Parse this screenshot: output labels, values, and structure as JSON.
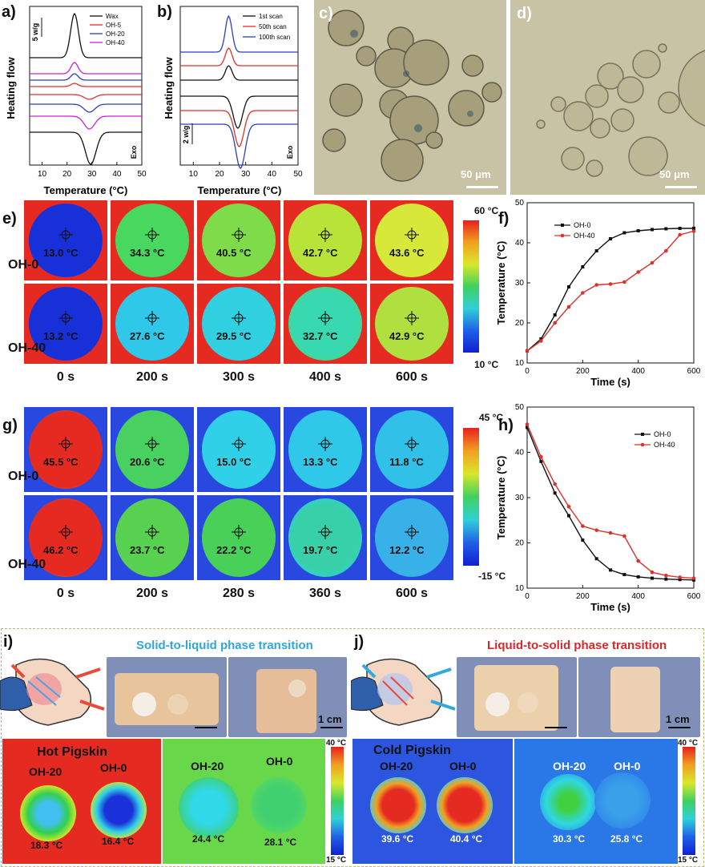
{
  "panels": {
    "a": {
      "label": "a)",
      "ylabel": "Heating flow",
      "xlabel": "Temperature (°C)",
      "scale": "5 w/g",
      "exo": "Exo",
      "legend": [
        "Wax",
        "OH-5",
        "OH-20",
        "OH-40"
      ]
    },
    "b": {
      "label": "b)",
      "ylabel": "Heating flow",
      "xlabel": "Temperature (°C)",
      "scale": "2 w/g",
      "exo": "Exo",
      "legend": [
        "1st scan",
        "50th scan",
        "100th scan"
      ]
    },
    "c": {
      "label": "c)",
      "scalebar": "50 μm"
    },
    "d": {
      "label": "d)",
      "scalebar": "50 μm"
    },
    "e": {
      "label": "e)",
      "rows": [
        {
          "name": "OH-0",
          "temps": [
            "13.0 °C",
            "34.3 °C",
            "40.5 °C",
            "42.7 °C",
            "43.6 °C"
          ]
        },
        {
          "name": "OH-40",
          "temps": [
            "13.2 °C",
            "27.6 °C",
            "29.5 °C",
            "32.7 °C",
            "42.9 °C"
          ]
        }
      ],
      "times": [
        "0 s",
        "200 s",
        "300 s",
        "400 s",
        "600 s"
      ],
      "cbar_top": "60 °C",
      "cbar_bottom": "10 °C"
    },
    "f": {
      "label": "f)",
      "ylabel": "Temperature (°C)",
      "xlabel": "Time (s)",
      "legend": [
        "OH-0",
        "OH-40"
      ]
    },
    "g": {
      "label": "g)",
      "rows": [
        {
          "name": "OH-0",
          "temps": [
            "45.5 °C",
            "20.6 °C",
            "15.0 °C",
            "13.3 °C",
            "11.8 °C"
          ]
        },
        {
          "name": "OH-40",
          "temps": [
            "46.2 °C",
            "23.7 °C",
            "22.2 °C",
            "19.7 °C",
            "12.2 °C"
          ]
        }
      ],
      "times": [
        "0 s",
        "200 s",
        "280 s",
        "360 s",
        "600 s"
      ],
      "cbar_top": "45 °C",
      "cbar_bottom": "-15 °C"
    },
    "h": {
      "label": "h)",
      "ylabel": "Temperature (°C)",
      "xlabel": "Time (s)",
      "legend": [
        "OH-0",
        "OH-40"
      ]
    },
    "i": {
      "label": "i)",
      "phase": "Solid-to-liquid phase transition",
      "scalebar": "1 cm",
      "pig_title": "Hot Pigskin",
      "left": {
        "a": "OH-20",
        "b": "OH-0",
        "ta": "18.3 °C",
        "tb": "16.4 °C"
      },
      "right": {
        "a": "OH-20",
        "b": "OH-0",
        "ta": "24.4 °C",
        "tb": "28.1 °C"
      },
      "cbar_top": "40 °C",
      "cbar_bottom": "15 °C"
    },
    "j": {
      "label": "j)",
      "phase": "Liquid-to-solid phase transition",
      "scalebar": "1 cm",
      "pig_title": "Cold Pigskin",
      "left": {
        "a": "OH-20",
        "b": "OH-0",
        "ta": "39.6 °C",
        "tb": "40.4 °C"
      },
      "right": {
        "a": "OH-20",
        "b": "OH-0",
        "ta": "30.3 °C",
        "tb": "25.8 °C"
      },
      "cbar_top": "40 °C",
      "cbar_bottom": "15 °C"
    }
  },
  "chart_data": [
    {
      "type": "line",
      "panel": "a",
      "xlabel": "Temperature (°C)",
      "ylabel": "Heating flow",
      "xlim": [
        5,
        50
      ],
      "x_ticks": [
        10,
        20,
        30,
        40,
        50
      ],
      "series": [
        {
          "name": "Wax",
          "color": "#111111"
        },
        {
          "name": "OH-5",
          "color": "#e0302a"
        },
        {
          "name": "OH-20",
          "color": "#2b3fbf"
        },
        {
          "name": "OH-40",
          "color": "#d020d0"
        }
      ]
    },
    {
      "type": "line",
      "panel": "b",
      "xlabel": "Temperature (°C)",
      "ylabel": "Heating flow",
      "xlim": [
        5,
        50
      ],
      "x_ticks": [
        10,
        20,
        30,
        40,
        50
      ],
      "series": [
        {
          "name": "1st scan",
          "color": "#111111"
        },
        {
          "name": "50th scan",
          "color": "#e0302a"
        },
        {
          "name": "100th scan",
          "color": "#2b3fbf"
        }
      ]
    },
    {
      "type": "line",
      "panel": "f",
      "xlabel": "Time (s)",
      "ylabel": "Temperature (°C)",
      "xlim": [
        0,
        600
      ],
      "ylim": [
        10,
        50
      ],
      "x_ticks": [
        0,
        200,
        400,
        600
      ],
      "y_ticks": [
        10,
        20,
        30,
        40,
        50
      ],
      "series": [
        {
          "name": "OH-0",
          "color": "#111111",
          "x": [
            0,
            50,
            100,
            150,
            200,
            250,
            300,
            350,
            400,
            450,
            500,
            550,
            600
          ],
          "y": [
            13,
            16,
            22,
            29,
            34,
            38,
            41,
            42.5,
            43,
            43.3,
            43.5,
            43.6,
            43.6
          ]
        },
        {
          "name": "OH-40",
          "color": "#e0302a",
          "x": [
            0,
            50,
            100,
            150,
            200,
            250,
            300,
            350,
            400,
            450,
            500,
            550,
            600
          ],
          "y": [
            13,
            15.5,
            20,
            24,
            27.5,
            29.5,
            29.7,
            30.2,
            32.7,
            35,
            38,
            42,
            42.9
          ]
        }
      ]
    },
    {
      "type": "line",
      "panel": "h",
      "xlabel": "Time (s)",
      "ylabel": "Temperature (°C)",
      "xlim": [
        0,
        600
      ],
      "ylim": [
        10,
        50
      ],
      "x_ticks": [
        0,
        200,
        400,
        600
      ],
      "y_ticks": [
        10,
        20,
        30,
        40,
        50
      ],
      "series": [
        {
          "name": "OH-0",
          "color": "#111111",
          "x": [
            0,
            50,
            100,
            150,
            200,
            250,
            300,
            350,
            400,
            450,
            500,
            550,
            600
          ],
          "y": [
            45.5,
            38,
            31,
            26,
            20.6,
            16.5,
            14,
            13,
            12.5,
            12.2,
            12,
            11.9,
            11.8
          ]
        },
        {
          "name": "OH-40",
          "color": "#e0302a",
          "x": [
            0,
            50,
            100,
            150,
            200,
            250,
            300,
            350,
            400,
            450,
            500,
            550,
            600
          ],
          "y": [
            46.2,
            39,
            33,
            28,
            23.7,
            22.8,
            22.2,
            21.5,
            16,
            13.5,
            12.8,
            12.4,
            12.2
          ]
        }
      ]
    }
  ]
}
